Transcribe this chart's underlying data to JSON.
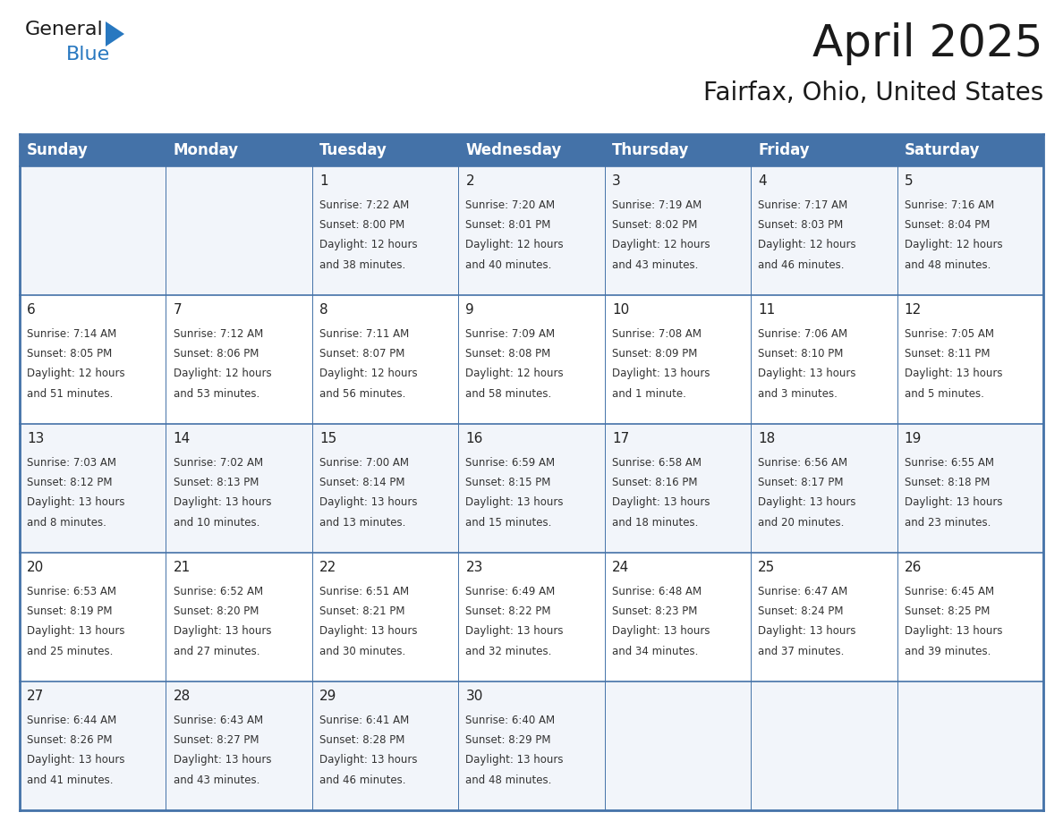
{
  "title": "April 2025",
  "subtitle": "Fairfax, Ohio, United States",
  "header_color": "#4472a8",
  "header_text_color": "#ffffff",
  "cell_bg_even": "#f2f5fa",
  "cell_bg_odd": "#ffffff",
  "border_color": "#4472a8",
  "text_color": "#333333",
  "date_color": "#222222",
  "day_names": [
    "Sunday",
    "Monday",
    "Tuesday",
    "Wednesday",
    "Thursday",
    "Friday",
    "Saturday"
  ],
  "days": [
    {
      "date": 1,
      "col": 2,
      "row": 0,
      "sunrise": "7:22 AM",
      "sunset": "8:00 PM",
      "daylight": "12 hours and 38 minutes."
    },
    {
      "date": 2,
      "col": 3,
      "row": 0,
      "sunrise": "7:20 AM",
      "sunset": "8:01 PM",
      "daylight": "12 hours and 40 minutes."
    },
    {
      "date": 3,
      "col": 4,
      "row": 0,
      "sunrise": "7:19 AM",
      "sunset": "8:02 PM",
      "daylight": "12 hours and 43 minutes."
    },
    {
      "date": 4,
      "col": 5,
      "row": 0,
      "sunrise": "7:17 AM",
      "sunset": "8:03 PM",
      "daylight": "12 hours and 46 minutes."
    },
    {
      "date": 5,
      "col": 6,
      "row": 0,
      "sunrise": "7:16 AM",
      "sunset": "8:04 PM",
      "daylight": "12 hours and 48 minutes."
    },
    {
      "date": 6,
      "col": 0,
      "row": 1,
      "sunrise": "7:14 AM",
      "sunset": "8:05 PM",
      "daylight": "12 hours and 51 minutes."
    },
    {
      "date": 7,
      "col": 1,
      "row": 1,
      "sunrise": "7:12 AM",
      "sunset": "8:06 PM",
      "daylight": "12 hours and 53 minutes."
    },
    {
      "date": 8,
      "col": 2,
      "row": 1,
      "sunrise": "7:11 AM",
      "sunset": "8:07 PM",
      "daylight": "12 hours and 56 minutes."
    },
    {
      "date": 9,
      "col": 3,
      "row": 1,
      "sunrise": "7:09 AM",
      "sunset": "8:08 PM",
      "daylight": "12 hours and 58 minutes."
    },
    {
      "date": 10,
      "col": 4,
      "row": 1,
      "sunrise": "7:08 AM",
      "sunset": "8:09 PM",
      "daylight": "13 hours and 1 minute."
    },
    {
      "date": 11,
      "col": 5,
      "row": 1,
      "sunrise": "7:06 AM",
      "sunset": "8:10 PM",
      "daylight": "13 hours and 3 minutes."
    },
    {
      "date": 12,
      "col": 6,
      "row": 1,
      "sunrise": "7:05 AM",
      "sunset": "8:11 PM",
      "daylight": "13 hours and 5 minutes."
    },
    {
      "date": 13,
      "col": 0,
      "row": 2,
      "sunrise": "7:03 AM",
      "sunset": "8:12 PM",
      "daylight": "13 hours and 8 minutes."
    },
    {
      "date": 14,
      "col": 1,
      "row": 2,
      "sunrise": "7:02 AM",
      "sunset": "8:13 PM",
      "daylight": "13 hours and 10 minutes."
    },
    {
      "date": 15,
      "col": 2,
      "row": 2,
      "sunrise": "7:00 AM",
      "sunset": "8:14 PM",
      "daylight": "13 hours and 13 minutes."
    },
    {
      "date": 16,
      "col": 3,
      "row": 2,
      "sunrise": "6:59 AM",
      "sunset": "8:15 PM",
      "daylight": "13 hours and 15 minutes."
    },
    {
      "date": 17,
      "col": 4,
      "row": 2,
      "sunrise": "6:58 AM",
      "sunset": "8:16 PM",
      "daylight": "13 hours and 18 minutes."
    },
    {
      "date": 18,
      "col": 5,
      "row": 2,
      "sunrise": "6:56 AM",
      "sunset": "8:17 PM",
      "daylight": "13 hours and 20 minutes."
    },
    {
      "date": 19,
      "col": 6,
      "row": 2,
      "sunrise": "6:55 AM",
      "sunset": "8:18 PM",
      "daylight": "13 hours and 23 minutes."
    },
    {
      "date": 20,
      "col": 0,
      "row": 3,
      "sunrise": "6:53 AM",
      "sunset": "8:19 PM",
      "daylight": "13 hours and 25 minutes."
    },
    {
      "date": 21,
      "col": 1,
      "row": 3,
      "sunrise": "6:52 AM",
      "sunset": "8:20 PM",
      "daylight": "13 hours and 27 minutes."
    },
    {
      "date": 22,
      "col": 2,
      "row": 3,
      "sunrise": "6:51 AM",
      "sunset": "8:21 PM",
      "daylight": "13 hours and 30 minutes."
    },
    {
      "date": 23,
      "col": 3,
      "row": 3,
      "sunrise": "6:49 AM",
      "sunset": "8:22 PM",
      "daylight": "13 hours and 32 minutes."
    },
    {
      "date": 24,
      "col": 4,
      "row": 3,
      "sunrise": "6:48 AM",
      "sunset": "8:23 PM",
      "daylight": "13 hours and 34 minutes."
    },
    {
      "date": 25,
      "col": 5,
      "row": 3,
      "sunrise": "6:47 AM",
      "sunset": "8:24 PM",
      "daylight": "13 hours and 37 minutes."
    },
    {
      "date": 26,
      "col": 6,
      "row": 3,
      "sunrise": "6:45 AM",
      "sunset": "8:25 PM",
      "daylight": "13 hours and 39 minutes."
    },
    {
      "date": 27,
      "col": 0,
      "row": 4,
      "sunrise": "6:44 AM",
      "sunset": "8:26 PM",
      "daylight": "13 hours and 41 minutes."
    },
    {
      "date": 28,
      "col": 1,
      "row": 4,
      "sunrise": "6:43 AM",
      "sunset": "8:27 PM",
      "daylight": "13 hours and 43 minutes."
    },
    {
      "date": 29,
      "col": 2,
      "row": 4,
      "sunrise": "6:41 AM",
      "sunset": "8:28 PM",
      "daylight": "13 hours and 46 minutes."
    },
    {
      "date": 30,
      "col": 3,
      "row": 4,
      "sunrise": "6:40 AM",
      "sunset": "8:29 PM",
      "daylight": "13 hours and 48 minutes."
    }
  ],
  "num_rows": 5,
  "num_cols": 7,
  "logo_text_general": "General",
  "logo_text_blue": "Blue",
  "logo_color_general": "#1a1a1a",
  "logo_color_blue": "#2878c0",
  "logo_triangle_color": "#2878c0",
  "title_fontsize": 36,
  "subtitle_fontsize": 20,
  "header_fontsize": 12,
  "date_fontsize": 11,
  "cell_fontsize": 8.5
}
